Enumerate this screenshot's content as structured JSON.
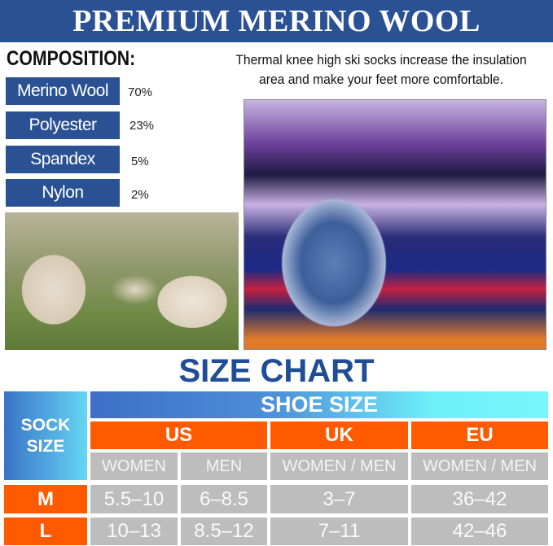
{
  "header": {
    "title": "PREMIUM MERINO WOOL"
  },
  "composition": {
    "title": "COMPOSITION:",
    "items": [
      {
        "label": "Merino Wool",
        "percent": "70%"
      },
      {
        "label": "Polyester",
        "percent": "23%"
      },
      {
        "label": "Spandex",
        "percent": "5%"
      },
      {
        "label": "Nylon",
        "percent": "2%"
      }
    ]
  },
  "description": "Thermal knee high ski socks increase the insulation area and make your feet more comfortable.",
  "size_chart": {
    "title": "SIZE CHART",
    "sock_size_label": "SOCK SIZE",
    "shoe_size_label": "SHOE SIZE",
    "regions": [
      "US",
      "UK",
      "EU"
    ],
    "subheaders": [
      "WOMEN",
      "MEN",
      "WOMEN / MEN",
      "WOMEN / MEN"
    ],
    "rows": [
      {
        "size": "M",
        "values": [
          "5.5–10",
          "6–8.5",
          "3–7",
          "36–42"
        ]
      },
      {
        "size": "L",
        "values": [
          "10–13",
          "8.5–12",
          "7–11",
          "42–46"
        ]
      }
    ]
  },
  "colors": {
    "brand_blue": "#2a5193",
    "orange": "#ff5a00",
    "gray": "#bdbdbd"
  }
}
